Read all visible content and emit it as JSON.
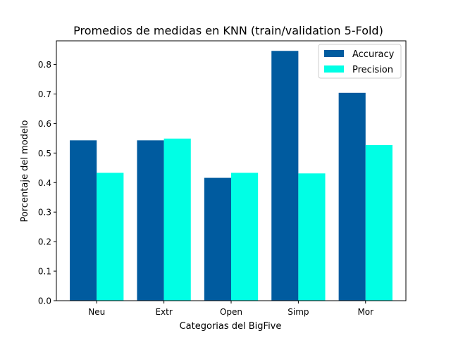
{
  "chart_data": {
    "type": "bar",
    "title": "Promedios de medidas en KNN (train/validation 5-Fold)",
    "xlabel": "Categorias del BigFive",
    "ylabel": "Porcentaje del modelo",
    "categories": [
      "Neu",
      "Extr",
      "Open",
      "Simp",
      "Mor"
    ],
    "series": [
      {
        "name": "Accuracy",
        "color": "#005b9f",
        "values": [
          0.543,
          0.543,
          0.416,
          0.846,
          0.704
        ]
      },
      {
        "name": "Precision",
        "color": "#00ffe5",
        "values": [
          0.433,
          0.549,
          0.433,
          0.431,
          0.527
        ]
      }
    ],
    "ylim": [
      0,
      0.88
    ],
    "yticks": [
      "0.0",
      "0.1",
      "0.2",
      "0.3",
      "0.4",
      "0.5",
      "0.6",
      "0.7",
      "0.8"
    ],
    "grid": false,
    "legend_position": "top-right"
  }
}
